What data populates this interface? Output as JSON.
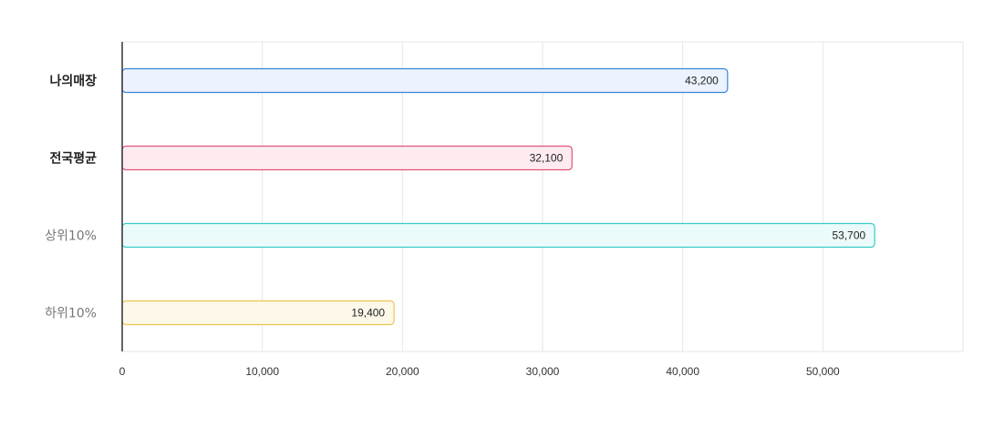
{
  "chart_data": {
    "type": "bar",
    "orientation": "horizontal",
    "categories": [
      "나의매장",
      "전국평균",
      "상위10%",
      "하위10%"
    ],
    "category_emphasis": [
      "bold",
      "bold",
      "light",
      "light"
    ],
    "values": [
      43200,
      32100,
      53700,
      19400
    ],
    "value_labels": [
      "43,200",
      "32,100",
      "53,700",
      "19,400"
    ],
    "xlim": [
      0,
      60000
    ],
    "x_ticks": [
      0,
      10000,
      20000,
      30000,
      40000,
      50000
    ],
    "x_tick_labels": [
      "0",
      "10,000",
      "20,000",
      "30,000",
      "40,000",
      "50,000"
    ],
    "grid": true,
    "bar_fill_colors": [
      "#ecf3fe",
      "#fdebf0",
      "#ebfbfb",
      "#fef8ea"
    ],
    "bar_stroke_colors": [
      "#3a84d8",
      "#e25577",
      "#38cbc6",
      "#ecc64f"
    ]
  }
}
